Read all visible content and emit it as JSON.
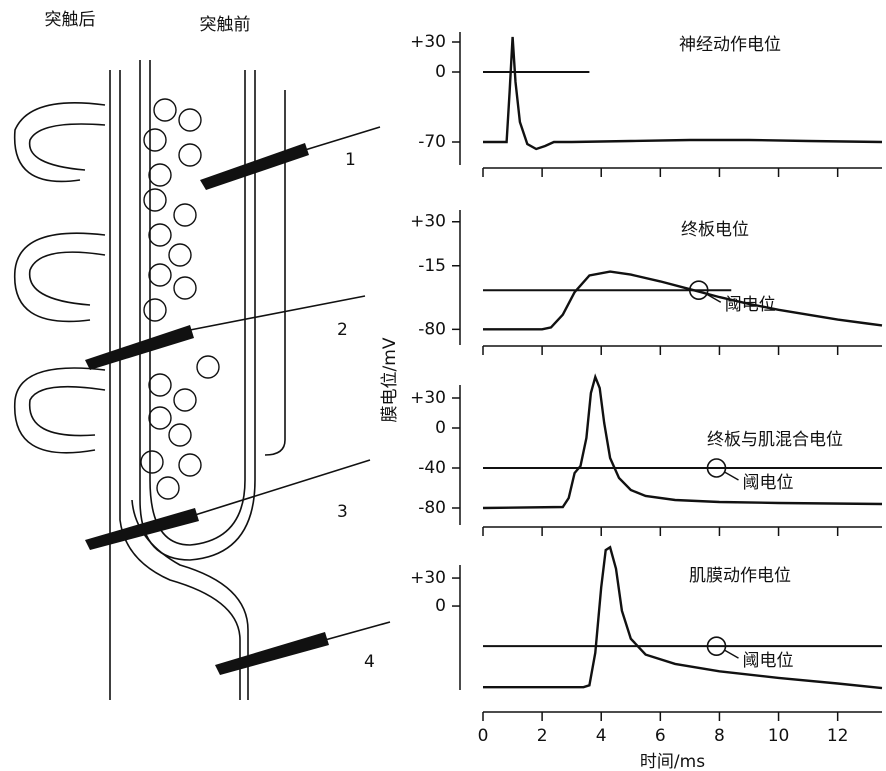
{
  "diagram": {
    "post_label": "突触后",
    "pre_label": "突触前",
    "electrodes": [
      "1",
      "2",
      "3",
      "4"
    ]
  },
  "chart_data": [
    {
      "type": "line",
      "title": "神经动作电位",
      "color": "#111",
      "x": [
        0,
        0.8,
        0.9,
        1.0,
        1.1,
        1.25,
        1.5,
        1.8,
        2.1,
        2.4,
        3,
        5,
        7,
        9,
        11,
        13.5
      ],
      "values": [
        -70,
        -70,
        -20,
        35,
        -10,
        -50,
        -72,
        -77,
        -74,
        -70,
        -70,
        -69,
        -68,
        -68,
        -69,
        -70
      ],
      "xlim": [
        0,
        13.5
      ],
      "xticks": [
        0,
        2,
        4,
        6,
        8,
        10,
        12
      ],
      "ylim": [
        -93,
        40
      ],
      "yticks": [
        {
          "value": 30,
          "label": "+30"
        },
        0,
        -70
      ],
      "reference_line": {
        "value": 0,
        "x": [
          0,
          3.6
        ]
      }
    },
    {
      "type": "line",
      "title": "终板电位",
      "color": "#111",
      "ylabel": "膜电位/mV",
      "x": [
        0,
        2,
        2.3,
        2.7,
        3.1,
        3.6,
        4.3,
        5,
        6,
        7,
        8,
        9,
        10,
        11,
        12,
        13,
        13.5
      ],
      "values": [
        -80,
        -80,
        -78,
        -65,
        -42,
        -25,
        -21,
        -24,
        -31,
        -39,
        -47,
        -54,
        -60,
        -65,
        -70,
        -74,
        -76
      ],
      "xlim": [
        0,
        13.5
      ],
      "xticks": [
        0,
        2,
        4,
        6,
        8,
        10,
        12
      ],
      "ylim": [
        -96,
        42
      ],
      "yticks": [
        {
          "value": 30,
          "label": "+30"
        },
        -15,
        -80
      ],
      "threshold": {
        "value": -40,
        "label": "阈电位",
        "x": [
          0,
          8.4
        ]
      }
    },
    {
      "type": "line",
      "title": "终板与肌混合电位",
      "color": "#111",
      "x": [
        0,
        2.7,
        2.9,
        3.1,
        3.3,
        3.5,
        3.65,
        3.8,
        3.95,
        4.1,
        4.3,
        4.6,
        5,
        5.5,
        6.5,
        8,
        10,
        13.5
      ],
      "values": [
        -80,
        -79,
        -70,
        -45,
        -38,
        -10,
        35,
        51,
        40,
        5,
        -30,
        -50,
        -62,
        -68,
        -72,
        -74,
        -75,
        -76
      ],
      "xlim": [
        0,
        13.5
      ],
      "xticks": [
        0,
        2,
        4,
        6,
        8,
        10,
        12
      ],
      "ylim": [
        -97,
        43
      ],
      "yticks": [
        {
          "value": 30,
          "label": "+30"
        },
        0,
        -40,
        -80
      ],
      "threshold": {
        "value": -40,
        "label": "阈电位",
        "x": [
          0,
          13.5
        ]
      }
    },
    {
      "type": "line",
      "title": "肌膜动作电位",
      "color": "#111",
      "xlabel": "时间/ms",
      "x": [
        0,
        3.4,
        3.6,
        3.8,
        4.0,
        4.15,
        4.3,
        4.5,
        4.7,
        5,
        5.5,
        6.5,
        8,
        10,
        12,
        13.5
      ],
      "values": [
        -87,
        -87,
        -85,
        -50,
        20,
        60,
        63,
        40,
        -5,
        -35,
        -52,
        -62,
        -70,
        -77,
        -83,
        -88
      ],
      "xlim": [
        0,
        13.5
      ],
      "xticks": [
        0,
        2,
        4,
        6,
        8,
        10,
        12
      ],
      "ylim": [
        -90,
        44
      ],
      "yticks": [
        {
          "value": 30,
          "label": "+30"
        },
        0
      ],
      "threshold": {
        "value": -43,
        "label": "阈电位",
        "x": [
          0,
          13.5
        ]
      }
    }
  ]
}
